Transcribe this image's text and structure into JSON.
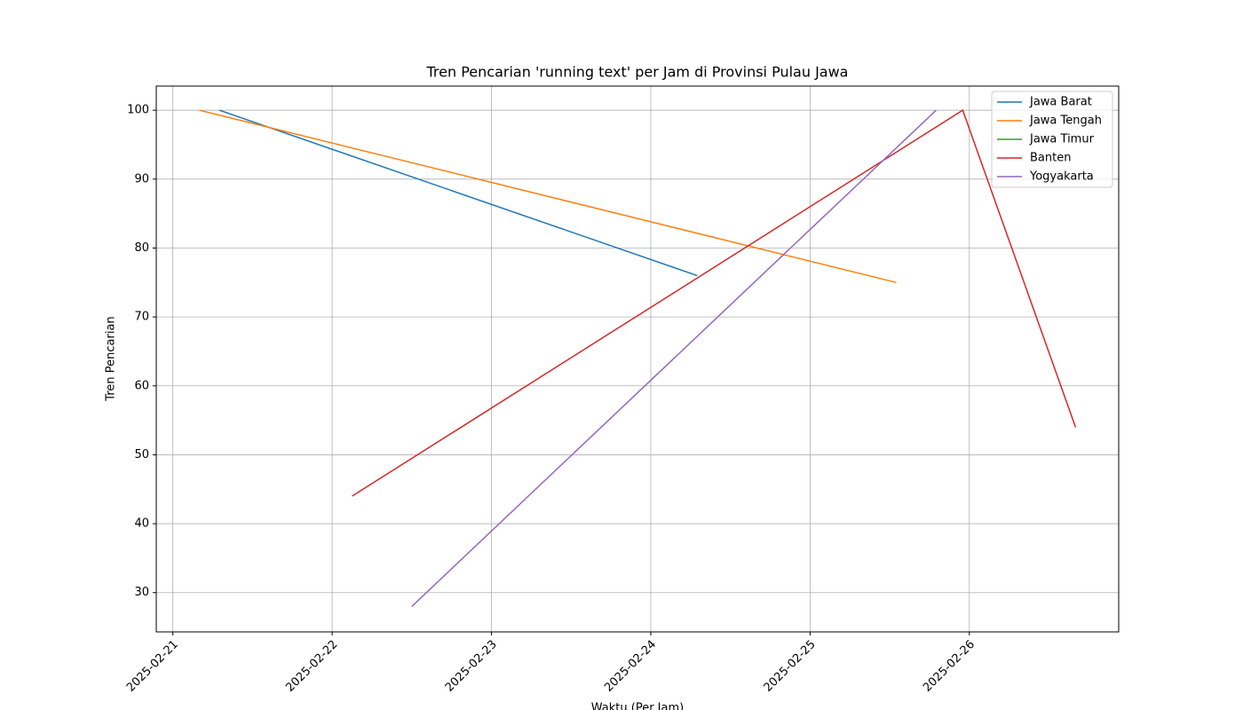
{
  "chart_data": {
    "type": "line",
    "title": "Tren Pencarian 'running text' per Jam di Provinsi Pulau Jawa",
    "x_label": "Waktu (Per Jam)",
    "y_label": "Tren Pencarian",
    "series": [
      {
        "name": "Jawa Barat",
        "color": "#1f77b4",
        "x": [
          "2025-02-21 07:00",
          "2025-02-24 07:00"
        ],
        "values": [
          100,
          76
        ]
      },
      {
        "name": "Jawa Tengah",
        "color": "#ff7f0e",
        "x": [
          "2025-02-21 04:00",
          "2025-02-25 13:00"
        ],
        "values": [
          100,
          75
        ]
      },
      {
        "name": "Jawa Timur",
        "color": "#2ca02c",
        "x": [],
        "values": []
      },
      {
        "name": "Banten",
        "color": "#d62728",
        "x": [
          "2025-02-22 03:00",
          "2025-02-25 23:00",
          "2025-02-26 16:00"
        ],
        "values": [
          44,
          100,
          54
        ]
      },
      {
        "name": "Yogyakarta",
        "color": "#9467bd",
        "x": [
          "2025-02-22 12:00",
          "2025-02-25 19:00"
        ],
        "values": [
          28,
          100
        ]
      }
    ],
    "xlim": [
      "2025-02-20 21:30",
      "2025-02-26 22:30"
    ],
    "xticks": [
      "2025-02-21",
      "2025-02-22",
      "2025-02-23",
      "2025-02-24",
      "2025-02-25",
      "2025-02-26"
    ],
    "ylim": [
      24.3,
      103.5
    ],
    "yticks": [
      30,
      40,
      50,
      60,
      70,
      80,
      90,
      100
    ],
    "grid": true,
    "legend": "upper right"
  }
}
